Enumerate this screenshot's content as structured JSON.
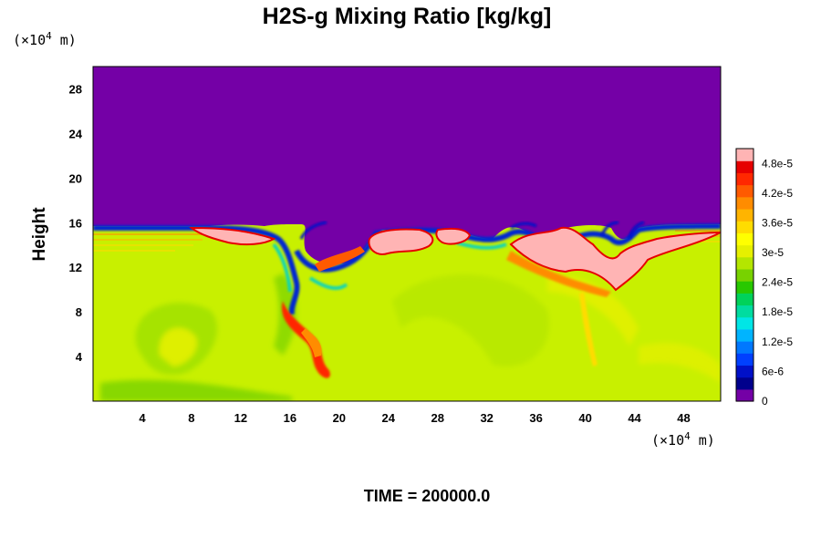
{
  "chart_data": {
    "type": "heatmap",
    "title": "H2S-g Mixing Ratio [kg/kg]",
    "ylabel": "Height",
    "x_unit": {
      "prefix": "(×10",
      "exp": "4",
      "suffix": " m)"
    },
    "y_unit": {
      "prefix": "(×10",
      "exp": "4",
      "suffix": " m)"
    },
    "xlim": [
      0,
      51
    ],
    "ylim": [
      0,
      30
    ],
    "x_ticks": [
      4,
      8,
      12,
      16,
      20,
      24,
      28,
      32,
      36,
      40,
      44,
      48
    ],
    "y_ticks": [
      4,
      8,
      12,
      16,
      20,
      24,
      28
    ],
    "colorbar": {
      "ticks": [
        "0",
        "6e-6",
        "1.2e-5",
        "1.8e-5",
        "2.4e-5",
        "3e-5",
        "3.6e-5",
        "4.2e-5",
        "4.8e-5"
      ],
      "tick_values": [
        0,
        6e-06,
        1.2e-05,
        1.8e-05,
        2.4e-05,
        3e-05,
        3.6e-05,
        4.2e-05,
        4.8e-05
      ],
      "max": 5.1e-05,
      "colors": [
        "#7400a6",
        "#00008c",
        "#0010c8",
        "#0040ff",
        "#0078ff",
        "#00b4ff",
        "#00e6e6",
        "#00dca0",
        "#00d25a",
        "#28c800",
        "#78d200",
        "#b4e600",
        "#e6f000",
        "#ffff00",
        "#ffdc00",
        "#ffb400",
        "#ff8c00",
        "#ff5a00",
        "#ff2800",
        "#e60000",
        "#ffb4b4"
      ]
    },
    "field_description_values": {
      "upper_region_value": 0,
      "lower_region_value": 3.4e-05,
      "interface_height": 15.6,
      "peak_value": 5.1e-05
    },
    "time_label": "TIME = 200000.0"
  }
}
